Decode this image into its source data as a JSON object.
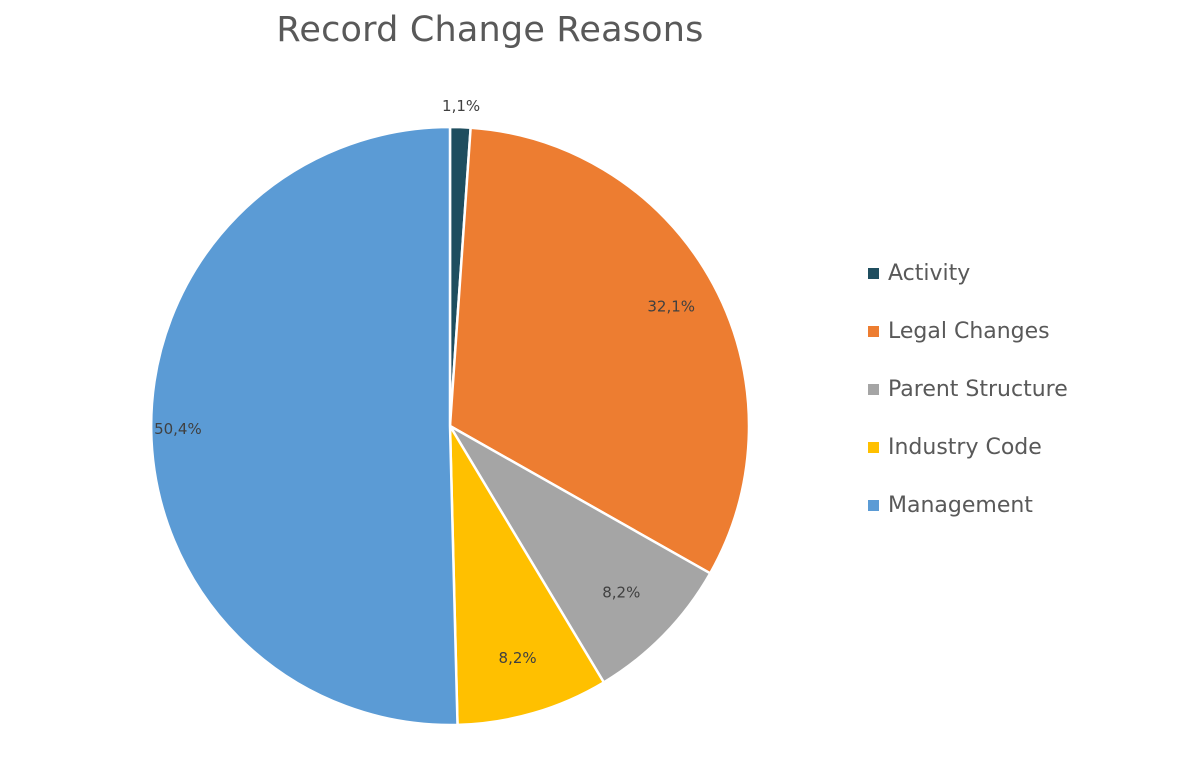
{
  "chart_data": {
    "type": "pie",
    "title": "Record Change Reasons",
    "legend_position": "right",
    "slices": [
      {
        "name": "Activity",
        "value": 1.1,
        "label": "1,1%",
        "color": "#1F4E5F"
      },
      {
        "name": "Legal Changes",
        "value": 32.1,
        "label": "32,1%",
        "color": "#ED7D31"
      },
      {
        "name": "Parent Structure",
        "value": 8.2,
        "label": "8,2%",
        "color": "#A5A5A5"
      },
      {
        "name": "Industry Code",
        "value": 8.2,
        "label": "8,2%",
        "color": "#FFC000"
      },
      {
        "name": "Management",
        "value": 50.4,
        "label": "50,4%",
        "color": "#5B9BD5"
      }
    ]
  }
}
